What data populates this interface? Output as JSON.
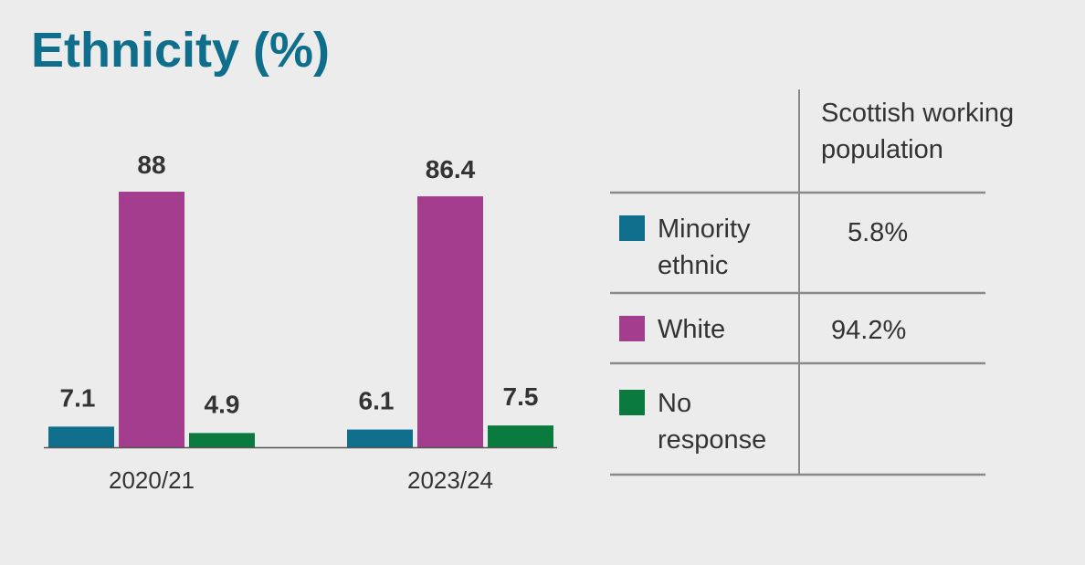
{
  "title": "Ethnicity (%)",
  "colors": {
    "title": "#0e6e8c",
    "minority": "#0e6e8c",
    "white": "#a43d8e",
    "no_response": "#0b7a3e",
    "text": "#333333",
    "rule": "#8a8a8a"
  },
  "chart_data": {
    "type": "bar",
    "title": "Ethnicity (%)",
    "categories": [
      "2020/21",
      "2023/24"
    ],
    "series": [
      {
        "name": "Minority ethnic",
        "values": [
          7.1,
          6.1
        ]
      },
      {
        "name": "White",
        "values": [
          88,
          86.4
        ]
      },
      {
        "name": "No response",
        "values": [
          4.9,
          7.5
        ]
      }
    ],
    "value_labels": [
      [
        "7.1",
        "6.1"
      ],
      [
        "88",
        "86.4"
      ],
      [
        "4.9",
        "7.5"
      ]
    ],
    "ylim": [
      0,
      88
    ],
    "grid": false,
    "legend": "table-right"
  },
  "table": {
    "header": "Scottish working population",
    "header_lines": [
      "Scottish working",
      "population"
    ],
    "rows": [
      {
        "label_lines": [
          "Minority",
          "ethnic"
        ],
        "value": "5.8%",
        "color_key": "minority"
      },
      {
        "label_lines": [
          "White"
        ],
        "value": "94.2%",
        "color_key": "white"
      },
      {
        "label_lines": [
          "No",
          "response"
        ],
        "value": "",
        "color_key": "no_response"
      }
    ]
  }
}
